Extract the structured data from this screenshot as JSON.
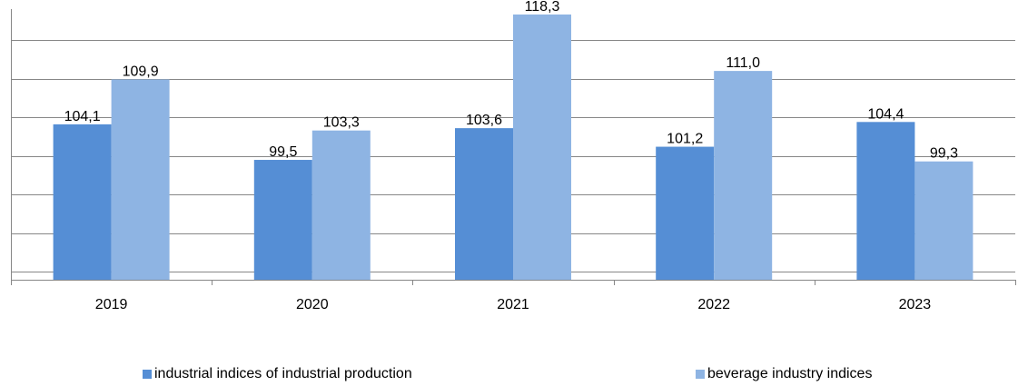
{
  "chart_data": {
    "type": "bar",
    "categories": [
      "2019",
      "2020",
      "2021",
      "2022",
      "2023"
    ],
    "series": [
      {
        "name": "industrial indices of industrial production",
        "values": [
          104.1,
          99.5,
          103.6,
          101.2,
          104.4
        ],
        "labels": [
          "104,1",
          "99,5",
          "103,6",
          "101,2",
          "104,4"
        ],
        "color": "#558ed5"
      },
      {
        "name": "beverage industry indices",
        "values": [
          109.9,
          103.3,
          118.3,
          111.0,
          99.3
        ],
        "labels": [
          "109,9",
          "103,3",
          "118,3",
          "111,0",
          "99,3"
        ],
        "color": "#8eb4e3"
      }
    ],
    "ylim": [
      84,
      119
    ],
    "gridlines": true,
    "legend_position": "bottom",
    "title": "",
    "xlabel": "",
    "ylabel": ""
  }
}
